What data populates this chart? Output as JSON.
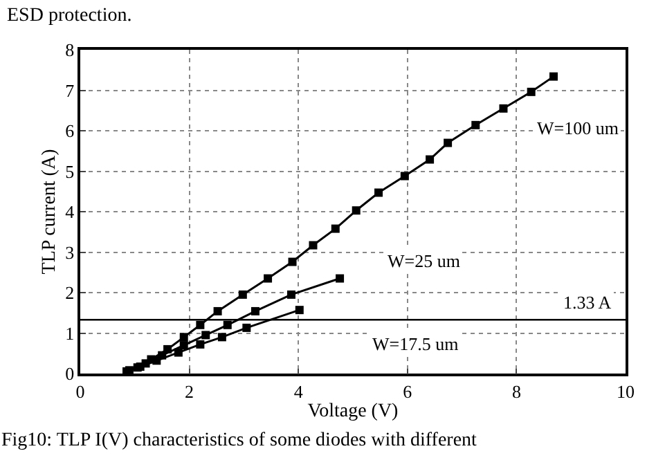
{
  "chart_data": {
    "type": "line",
    "xlabel": "Voltage (V)",
    "ylabel": "TLP current (A)",
    "xlim": [
      0,
      10
    ],
    "xticks": [
      0,
      2,
      4,
      6,
      8,
      10
    ],
    "ylim": [
      0,
      8
    ],
    "yticks": [
      0,
      1,
      2,
      3,
      4,
      5,
      6,
      7,
      8
    ],
    "grid": true,
    "legend": false,
    "marker": "square",
    "line_style": "solid",
    "series": [
      {
        "name": "W=100 um",
        "color": "#000000",
        "x": [
          0.85,
          1.05,
          1.3,
          1.6,
          1.9,
          2.2,
          2.52,
          2.98,
          3.44,
          3.89,
          4.27,
          4.68,
          5.06,
          5.47,
          5.95,
          6.41,
          6.74,
          7.25,
          7.76,
          8.27,
          8.68
        ],
        "values": [
          0.05,
          0.15,
          0.35,
          0.6,
          0.9,
          1.2,
          1.54,
          1.95,
          2.35,
          2.76,
          3.17,
          3.58,
          4.03,
          4.47,
          4.88,
          5.29,
          5.7,
          6.14,
          6.55,
          6.96,
          7.34
        ]
      },
      {
        "name": "W=25 um",
        "color": "#000000",
        "x": [
          0.9,
          1.2,
          1.5,
          1.9,
          2.3,
          2.7,
          3.21,
          3.87,
          4.76
        ],
        "values": [
          0.08,
          0.25,
          0.45,
          0.7,
          0.95,
          1.2,
          1.54,
          1.95,
          2.35
        ]
      },
      {
        "name": "W=17.5 um",
        "color": "#000000",
        "x": [
          0.85,
          1.1,
          1.4,
          1.8,
          2.2,
          2.6,
          3.05,
          4.02
        ],
        "values": [
          0.05,
          0.17,
          0.32,
          0.52,
          0.72,
          0.9,
          1.13,
          1.57
        ]
      }
    ],
    "ref_lines": [
      {
        "axis": "y",
        "value": 1.33,
        "color": "#000000",
        "label": "1.33 A"
      }
    ],
    "annotations": [
      "ESD protection.",
      "Fig10: TLP I(V) characteristics of some diodes with different"
    ]
  }
}
